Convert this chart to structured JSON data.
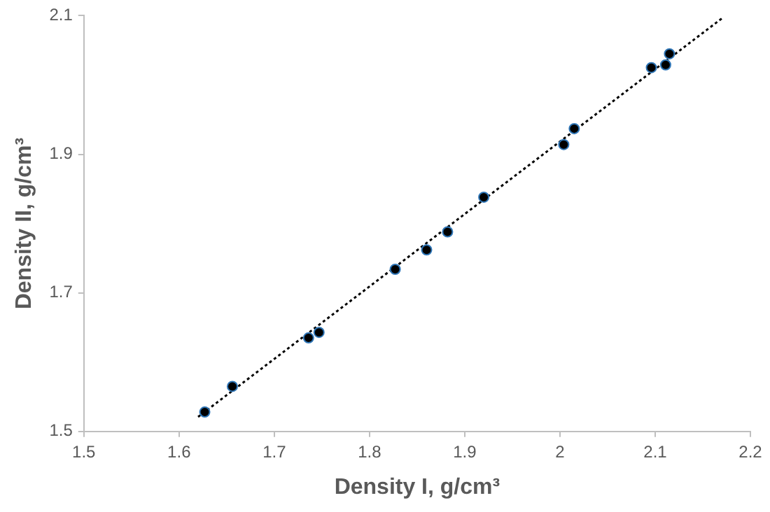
{
  "chart_data": {
    "type": "scatter",
    "xlabel": "Density I, g/cm³",
    "ylabel": "Density II, g/cm³",
    "xlim": [
      1.5,
      2.2
    ],
    "xticks": [
      1.5,
      1.6,
      1.7,
      1.8,
      1.9,
      2,
      2.1,
      2.2
    ],
    "ylim": [
      1.5,
      2.1
    ],
    "yticks": [
      1.5,
      1.7,
      1.9,
      2.1
    ],
    "grid": false,
    "legend": false,
    "series": [
      {
        "marker": "circle",
        "color": "#000000",
        "x": [
          1.627,
          1.656,
          1.736,
          1.747,
          1.827,
          1.86,
          1.882,
          1.92,
          2.004,
          2.015,
          2.096,
          2.111,
          2.115
        ],
        "values": [
          1.528,
          1.565,
          1.635,
          1.643,
          1.734,
          1.762,
          1.788,
          1.838,
          1.914,
          1.937,
          2.025,
          2.029,
          2.045
        ]
      },
      {
        "type": "line",
        "marker": "none",
        "color": "#000000",
        "line_style": "dotted",
        "x": [
          1.62,
          2.17
        ],
        "values": [
          1.521,
          2.096
        ]
      }
    ]
  }
}
